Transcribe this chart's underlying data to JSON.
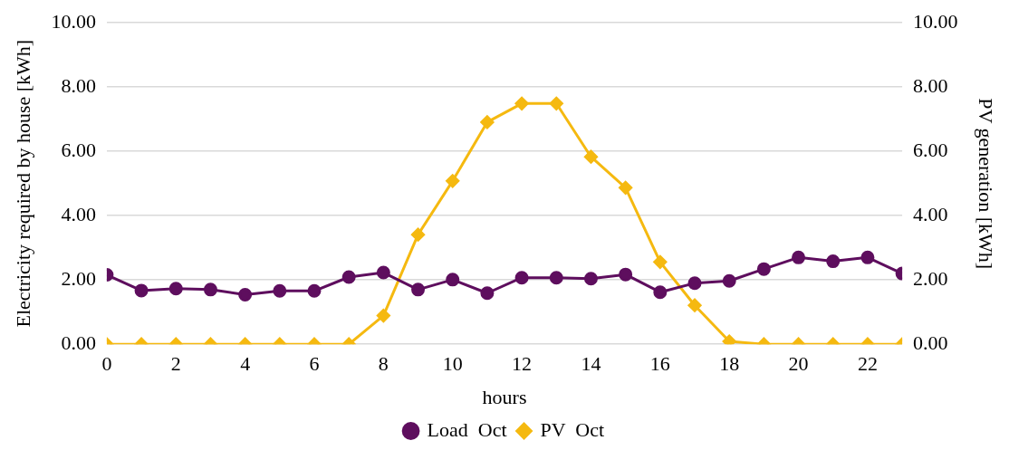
{
  "chart_data": {
    "type": "line",
    "xlabel": "hours",
    "ylabel": "Electricity required by house [kWh]",
    "y2label": "PV generation [kWh]",
    "x": [
      0,
      1,
      2,
      3,
      4,
      5,
      6,
      7,
      8,
      9,
      10,
      11,
      12,
      13,
      14,
      15,
      16,
      17,
      18,
      19,
      20,
      21,
      22,
      23
    ],
    "xlim": [
      0,
      23
    ],
    "xticks": [
      0,
      2,
      4,
      6,
      8,
      10,
      12,
      14,
      16,
      18,
      20,
      22
    ],
    "ylim": [
      0,
      10
    ],
    "yticks": [
      {
        "value": 0,
        "label": "0.00"
      },
      {
        "value": 2,
        "label": "2.00"
      },
      {
        "value": 4,
        "label": "4.00"
      },
      {
        "value": 6,
        "label": "6.00"
      },
      {
        "value": 8,
        "label": "8.00"
      },
      {
        "value": 10,
        "label": "10.00"
      }
    ],
    "y2lim": [
      0,
      10
    ],
    "y2ticks": [
      {
        "value": 0,
        "label": "0.00"
      },
      {
        "value": 2,
        "label": "2.00"
      },
      {
        "value": 4,
        "label": "4.00"
      },
      {
        "value": 6,
        "label": "6.00"
      },
      {
        "value": 8,
        "label": "8.00"
      },
      {
        "value": 10,
        "label": "10.00"
      }
    ],
    "grid": "y",
    "legend": "bottom",
    "series": [
      {
        "name": "Load  Oct",
        "color": "#5e0e5e",
        "marker": "circle",
        "values": [
          2.16,
          1.67,
          1.73,
          1.7,
          1.54,
          1.66,
          1.66,
          2.09,
          2.23,
          1.7,
          2.01,
          1.59,
          2.07,
          2.07,
          2.04,
          2.17,
          1.62,
          1.9,
          1.97,
          2.34,
          2.7,
          2.58,
          2.7,
          2.2
        ]
      },
      {
        "name": "PV  Oct",
        "color": "#f5b910",
        "marker": "diamond",
        "axis": "y2",
        "values": [
          0,
          0,
          0,
          0,
          0,
          0,
          0,
          0,
          0.89,
          3.41,
          5.08,
          6.91,
          7.49,
          7.49,
          5.83,
          4.87,
          2.56,
          1.21,
          0.09,
          0,
          0,
          0,
          0,
          0
        ]
      }
    ]
  }
}
